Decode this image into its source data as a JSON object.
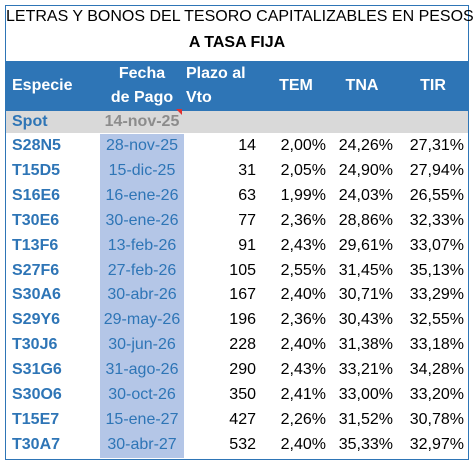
{
  "title": {
    "line1": "LETRAS Y BONOS DEL TESORO CAPITALIZABLES EN PESOS -",
    "line2": "A TASA FIJA"
  },
  "headers": {
    "especie": "Especie",
    "fecha_1": "Fecha",
    "fecha_2": "de Pago",
    "plazo_1": "Plazo al",
    "plazo_2": "Vto",
    "tem": "TEM",
    "tna": "TNA",
    "tir": "TIR"
  },
  "spot": {
    "label": "Spot",
    "date": "14-nov-25"
  },
  "rows": [
    {
      "especie": "S28N5",
      "fecha": "28-nov-25",
      "plazo": "14",
      "tem": "2,00%",
      "tna": "24,26%",
      "tir": "27,31%"
    },
    {
      "especie": "T15D5",
      "fecha": "15-dic-25",
      "plazo": "31",
      "tem": "2,05%",
      "tna": "24,90%",
      "tir": "27,94%"
    },
    {
      "especie": "S16E6",
      "fecha": "16-ene-26",
      "plazo": "63",
      "tem": "1,99%",
      "tna": "24,03%",
      "tir": "26,55%"
    },
    {
      "especie": "T30E6",
      "fecha": "30-ene-26",
      "plazo": "77",
      "tem": "2,36%",
      "tna": "28,86%",
      "tir": "32,33%"
    },
    {
      "especie": "T13F6",
      "fecha": "13-feb-26",
      "plazo": "91",
      "tem": "2,43%",
      "tna": "29,61%",
      "tir": "33,07%"
    },
    {
      "especie": "S27F6",
      "fecha": "27-feb-26",
      "plazo": "105",
      "tem": "2,55%",
      "tna": "31,45%",
      "tir": "35,13%"
    },
    {
      "especie": "S30A6",
      "fecha": "30-abr-26",
      "plazo": "167",
      "tem": "2,40%",
      "tna": "30,71%",
      "tir": "33,29%"
    },
    {
      "especie": "S29Y6",
      "fecha": "29-may-26",
      "plazo": "196",
      "tem": "2,36%",
      "tna": "30,43%",
      "tir": "32,55%"
    },
    {
      "especie": "T30J6",
      "fecha": "30-jun-26",
      "plazo": "228",
      "tem": "2,40%",
      "tna": "31,38%",
      "tir": "33,18%"
    },
    {
      "especie": "S31G6",
      "fecha": "31-ago-26",
      "plazo": "290",
      "tem": "2,43%",
      "tna": "33,21%",
      "tir": "34,28%"
    },
    {
      "especie": "S30O6",
      "fecha": "30-oct-26",
      "plazo": "350",
      "tem": "2,41%",
      "tna": "33,00%",
      "tir": "33,20%"
    },
    {
      "especie": "T15E7",
      "fecha": "15-ene-27",
      "plazo": "427",
      "tem": "2,26%",
      "tna": "31,52%",
      "tir": "30,78%"
    },
    {
      "especie": "T30A7",
      "fecha": "30-abr-27",
      "plazo": "532",
      "tem": "2,40%",
      "tna": "35,33%",
      "tir": "32,97%"
    }
  ],
  "colors": {
    "header_bg": "#2e75b6",
    "date_col_bg": "#b4c6e7",
    "spot_bg": "#d9d9d9",
    "accent": "#2e75b6"
  }
}
